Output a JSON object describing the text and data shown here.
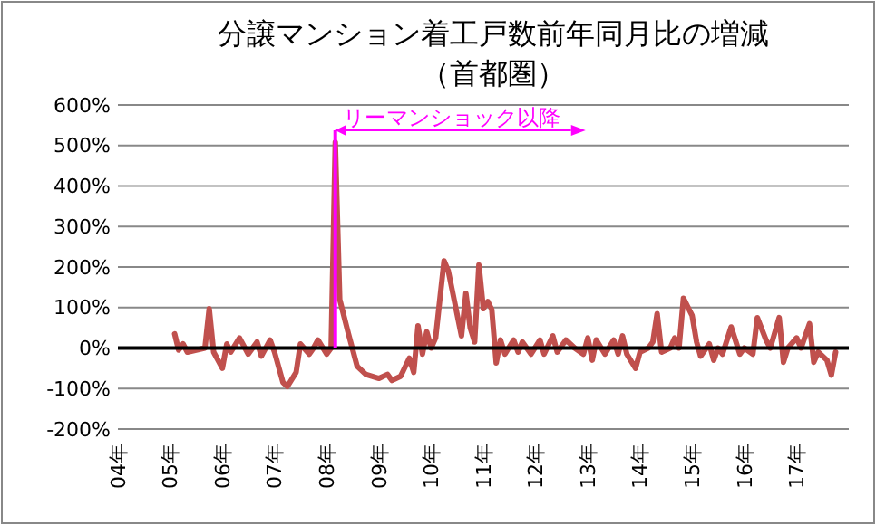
{
  "chart_data": {
    "type": "line",
    "title": "分譲マンション着工戸数前年同月比の増減",
    "subtitle": "（首都圏）",
    "x": [
      "2005-02",
      "2005-03",
      "2005-04",
      "2005-05",
      "2005-09",
      "2005-10",
      "2005-11",
      "2006-01",
      "2006-02",
      "2006-03",
      "2006-05",
      "2006-07",
      "2006-09",
      "2006-10",
      "2006-12",
      "2007-01",
      "2007-03",
      "2007-04",
      "2007-06",
      "2007-07",
      "2007-09",
      "2007-10",
      "2007-11",
      "2008-01",
      "2008-02",
      "2008-03",
      "2008-04",
      "2008-06",
      "2008-08",
      "2008-10",
      "2009-01",
      "2009-03",
      "2009-04",
      "2009-06",
      "2009-08",
      "2009-09",
      "2009-10",
      "2009-11",
      "2009-12",
      "2010-01",
      "2010-02",
      "2010-04",
      "2010-05",
      "2010-08",
      "2010-09",
      "2010-10",
      "2010-11",
      "2010-12",
      "2011-01",
      "2011-02",
      "2011-03",
      "2011-04",
      "2011-05",
      "2011-06",
      "2011-08",
      "2011-09",
      "2011-10",
      "2011-12",
      "2012-02",
      "2012-03",
      "2012-05",
      "2012-06",
      "2012-08",
      "2012-10",
      "2012-12",
      "2013-01",
      "2013-02",
      "2013-03",
      "2013-05",
      "2013-07",
      "2013-08",
      "2013-09",
      "2013-10",
      "2013-12",
      "2014-01",
      "2014-03",
      "2014-04",
      "2014-05",
      "2014-06",
      "2014-08",
      "2014-09",
      "2014-10",
      "2014-11",
      "2015-01",
      "2015-02",
      "2015-03",
      "2015-05",
      "2015-06",
      "2015-07",
      "2015-08",
      "2015-10",
      "2015-12",
      "2016-01",
      "2016-03",
      "2016-04",
      "2016-06",
      "2016-07",
      "2016-09",
      "2016-10",
      "2016-11",
      "2017-01",
      "2017-02",
      "2017-04",
      "2017-05",
      "2017-06",
      "2017-08",
      "2017-09",
      "2017-10"
    ],
    "series": [
      {
        "color": "#c0504d",
        "values": [
          35,
          -5,
          10,
          -10,
          0,
          97,
          -10,
          -50,
          10,
          -10,
          25,
          -15,
          15,
          -20,
          20,
          -10,
          -85,
          -95,
          -60,
          10,
          -15,
          0,
          20,
          -15,
          0,
          508,
          120,
          35,
          -45,
          -65,
          -75,
          -65,
          -80,
          -70,
          -25,
          -60,
          55,
          -15,
          40,
          0,
          25,
          215,
          190,
          30,
          135,
          50,
          15,
          205,
          97,
          115,
          95,
          -37,
          20,
          -15,
          20,
          -10,
          15,
          -15,
          20,
          -15,
          30,
          -10,
          20,
          0,
          -15,
          25,
          -30,
          20,
          -15,
          20,
          -15,
          30,
          -15,
          -50,
          -10,
          0,
          15,
          85,
          -10,
          0,
          25,
          0,
          123,
          80,
          15,
          -20,
          10,
          -30,
          0,
          -15,
          52,
          -15,
          0,
          -15,
          75,
          20,
          0,
          75,
          -35,
          0,
          25,
          0,
          60,
          -35,
          -10,
          -30,
          -67,
          -10
        ]
      }
    ],
    "xlim": [
      "2004-01",
      "2018-01"
    ],
    "xticks": [
      {
        "value": "2004-01",
        "label": "04年"
      },
      {
        "value": "2005-01",
        "label": "05年"
      },
      {
        "value": "2006-01",
        "label": "06年"
      },
      {
        "value": "2007-01",
        "label": "07年"
      },
      {
        "value": "2008-01",
        "label": "08年"
      },
      {
        "value": "2009-01",
        "label": "09年"
      },
      {
        "value": "2010-01",
        "label": "10年"
      },
      {
        "value": "2011-01",
        "label": "11年"
      },
      {
        "value": "2012-01",
        "label": "12年"
      },
      {
        "value": "2013-01",
        "label": "13年"
      },
      {
        "value": "2014-01",
        "label": "14年"
      },
      {
        "value": "2015-01",
        "label": "15年"
      },
      {
        "value": "2016-01",
        "label": "16年"
      },
      {
        "value": "2017-01",
        "label": "17年"
      }
    ],
    "ylim": [
      -200,
      600
    ],
    "yticks": [
      {
        "value": -200,
        "label": "-200%"
      },
      {
        "value": -100,
        "label": "-100%"
      },
      {
        "value": 0,
        "label": "0%"
      },
      {
        "value": 100,
        "label": "100%"
      },
      {
        "value": 200,
        "label": "200%"
      },
      {
        "value": 300,
        "label": "300%"
      },
      {
        "value": 400,
        "label": "400%"
      },
      {
        "value": 500,
        "label": "500%"
      },
      {
        "value": 600,
        "label": "600%"
      }
    ],
    "grid": "y",
    "ref_lines": [
      {
        "axis": "x",
        "value": "2008-03",
        "label": "リーマンショック以降",
        "color": "#ff00ff"
      }
    ]
  }
}
